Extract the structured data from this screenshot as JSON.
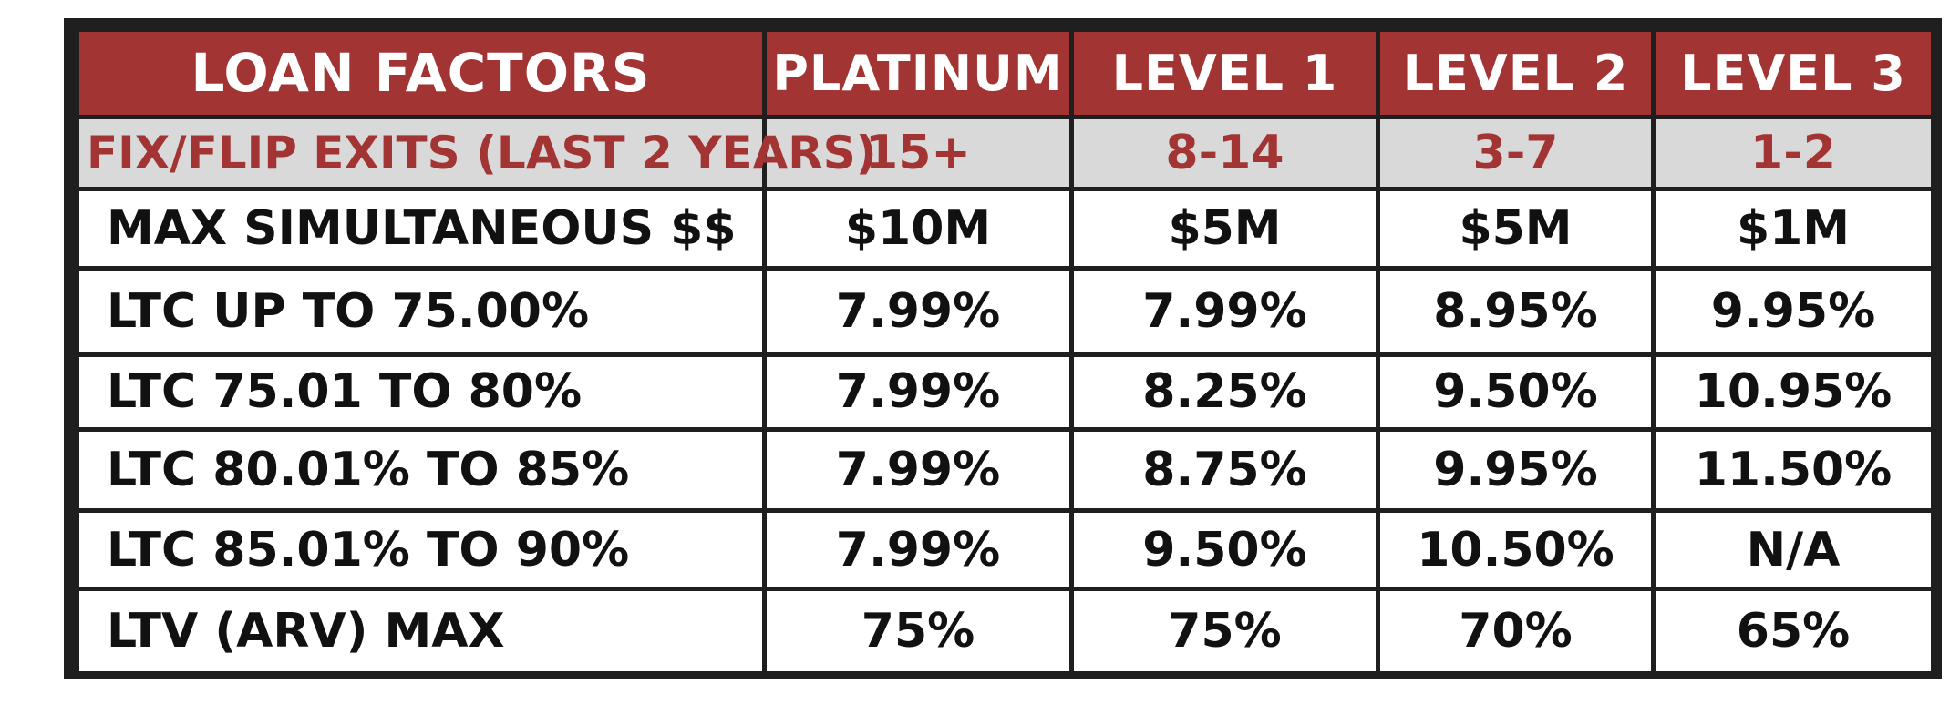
{
  "table": {
    "headers": [
      "LOAN FACTORS",
      "PLATINUM",
      "LEVEL 1",
      "LEVEL 2",
      "LEVEL 3"
    ],
    "exits_row": {
      "label": "FIX/FLIP EXITS (LAST 2 YEARS)",
      "values": [
        "15+",
        "8-14",
        "3-7",
        "1-2"
      ]
    },
    "rows": [
      {
        "label": "MAX SIMULTANEOUS $$",
        "values": [
          "$10M",
          "$5M",
          "$5M",
          "$1M"
        ]
      },
      {
        "label": "LTC UP TO 75.00%",
        "values": [
          "7.99%",
          "7.99%",
          "8.95%",
          "9.95%"
        ]
      },
      {
        "label": "LTC 75.01 TO 80%",
        "values": [
          "7.99%",
          "8.25%",
          "9.50%",
          "10.95%"
        ]
      },
      {
        "label": "LTC 80.01% TO 85%",
        "values": [
          "7.99%",
          "8.75%",
          "9.95%",
          "11.50%"
        ]
      },
      {
        "label": "LTC 85.01% TO 90%",
        "values": [
          "7.99%",
          "9.50%",
          "10.50%",
          "N/A"
        ]
      },
      {
        "label": "LTV (ARV) MAX",
        "values": [
          "75%",
          "75%",
          "70%",
          "65%"
        ]
      }
    ]
  },
  "colors": {
    "header_bg": "#a33434",
    "header_text": "#ffffff",
    "exits_bg": "#d9d9d9",
    "exits_text": "#a33434",
    "border": "#1f1f1f",
    "footer_text": "#b02323"
  }
}
